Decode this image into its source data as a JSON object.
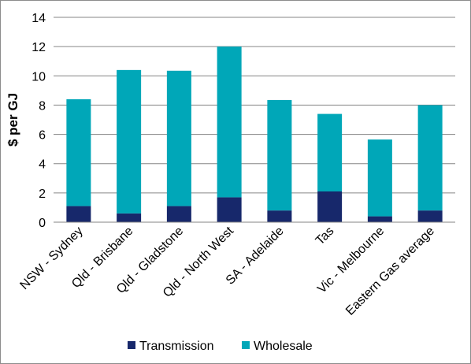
{
  "chart_data": {
    "type": "bar",
    "stacked": true,
    "title": "",
    "xlabel": "",
    "ylabel": "$ per GJ",
    "ylim": [
      0,
      14
    ],
    "yticks": [
      0,
      2,
      4,
      6,
      8,
      10,
      12,
      14
    ],
    "grid": true,
    "legend_position": "bottom",
    "categories": [
      "NSW - Sydney",
      "Qld - Brisbane",
      "Qld - Gladstone",
      "Qld - North West",
      "SA - Adelaide",
      "Tas",
      "Vic - Melbourne",
      "Eastern Gas average"
    ],
    "series": [
      {
        "name": "Transmission",
        "color": "#17286b",
        "values": [
          1.1,
          0.6,
          1.1,
          1.7,
          0.8,
          2.1,
          0.4,
          0.8
        ]
      },
      {
        "name": "Wholesale",
        "color": "#00a7b8",
        "values": [
          7.3,
          9.8,
          9.25,
          10.3,
          7.55,
          5.3,
          5.25,
          7.2
        ]
      }
    ]
  }
}
